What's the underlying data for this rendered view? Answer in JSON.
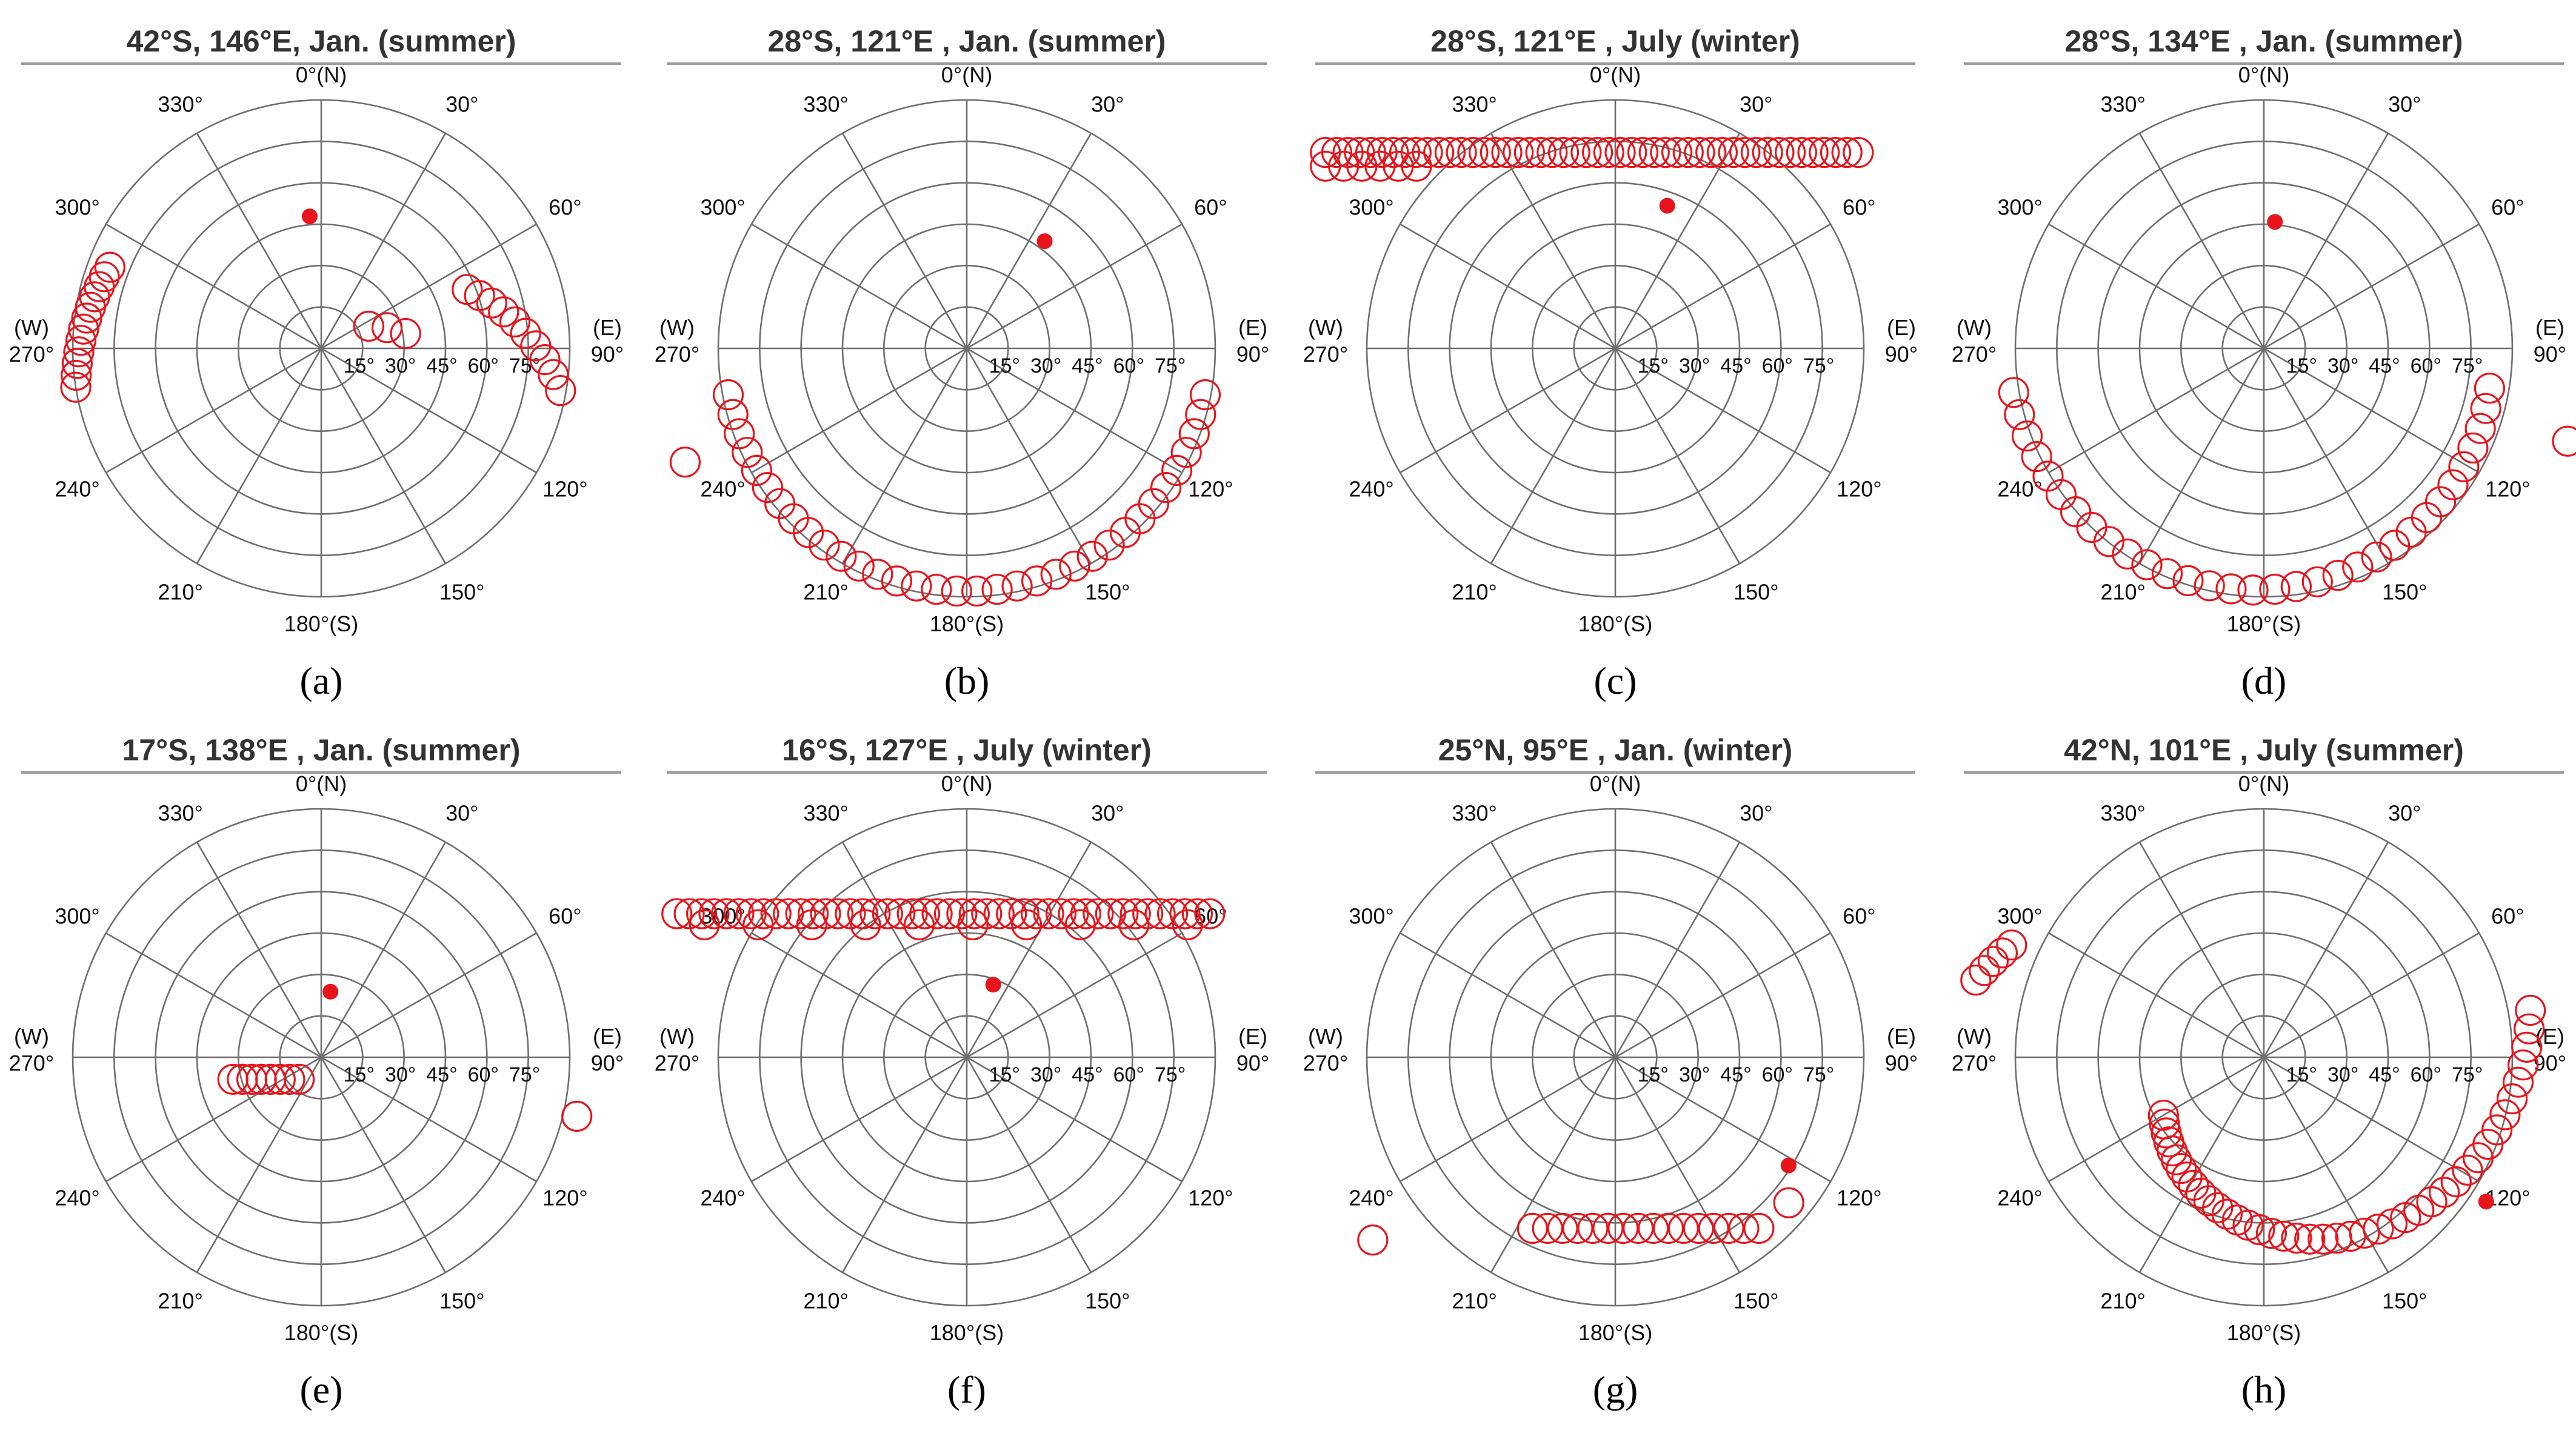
{
  "figure": {
    "panels": [
      "a",
      "b",
      "c",
      "d",
      "e",
      "f",
      "g",
      "h"
    ]
  },
  "colors": {
    "marker": "#e8141b",
    "grid": "#6e6e6e",
    "title_rule": "#999999",
    "text": "#111111"
  },
  "chart_data": [
    {
      "id": "a",
      "type": "polar-scatter",
      "title": "42°S, 146°E, Jan. (summer)",
      "caption": "(a)",
      "azimuth_labels": {
        "0": "0°(N)",
        "30": "30°",
        "60": "60°",
        "90": "(E) 90°",
        "120": "120°",
        "150": "150°",
        "180": "180°(S)",
        "210": "210°",
        "240": "240°",
        "270": "(W) 270°",
        "300": "300°",
        "330": "330°"
      },
      "zenith_rings": [
        15,
        30,
        45,
        60,
        75,
        90
      ],
      "radial_tick_labels": [
        "15°",
        "30°",
        "45°",
        "60°",
        "75°"
      ],
      "sun_marker": {
        "az": 355,
        "zen": 48
      },
      "series": [
        {
          "name": "west-arc",
          "az_from": 261,
          "az_to": 291,
          "zen_from": 90,
          "zen_to": 82,
          "count": 12
        },
        {
          "name": "center-cluster",
          "az_from": 65,
          "az_to": 80,
          "zen_from": 19,
          "zen_to": 31,
          "count": 3
        },
        {
          "name": "east-arc",
          "az_from": 68,
          "az_to": 100,
          "zen_from": 57,
          "zen_to": 88,
          "count": 10
        }
      ]
    },
    {
      "id": "b",
      "type": "polar-scatter",
      "title": "28°S, 121°E , Jan. (summer)",
      "caption": "(b)",
      "azimuth_labels": {
        "0": "0°(N)",
        "30": "30°",
        "60": "60°",
        "90": "(E) 90°",
        "120": "120°",
        "150": "150°",
        "180": "180°(S)",
        "210": "210°",
        "240": "240°",
        "270": "(W) 270°",
        "300": "300°",
        "330": "330°"
      },
      "zenith_rings": [
        15,
        30,
        45,
        60,
        75,
        90
      ],
      "radial_tick_labels": [
        "15°",
        "30°",
        "45°",
        "60°",
        "75°"
      ],
      "sun_marker": {
        "az": 36,
        "zen": 48
      },
      "series": [
        {
          "name": "main-arc",
          "az_from": 259,
          "az_to": 101,
          "zen_from": 88,
          "zen_to": 88,
          "count": 34
        },
        {
          "name": "outlier",
          "az_from": 248,
          "az_to": 248,
          "zen_from": 110,
          "zen_to": 110,
          "count": 1
        }
      ]
    },
    {
      "id": "c",
      "type": "polar-scatter",
      "title": "28°S, 121°E , July (winter)",
      "caption": "(c)",
      "azimuth_labels": {
        "0": "0°(N)",
        "30": "30°",
        "60": "60°",
        "90": "(E) 90°",
        "120": "120°",
        "150": "150°",
        "180": "180°(S)",
        "210": "210°",
        "240": "240°",
        "270": "(W) 270°",
        "300": "300°",
        "330": "330°"
      },
      "zenith_rings": [
        15,
        30,
        45,
        60,
        75,
        90
      ],
      "radial_tick_labels": [
        "15°",
        "30°",
        "45°",
        "60°",
        "75°"
      ],
      "sun_marker": {
        "az": 20,
        "zen": 55
      },
      "series": [
        {
          "name": "band",
          "type": "horizontal-band",
          "x_from": -105,
          "x_to": 88,
          "y": 71,
          "count": 48
        },
        {
          "name": "band-west",
          "type": "horizontal-band",
          "x_from": -105,
          "x_to": -72,
          "y": 66,
          "count": 6
        }
      ]
    },
    {
      "id": "d",
      "type": "polar-scatter",
      "title": "28°S, 134°E , Jan. (summer)",
      "caption": "(d)",
      "azimuth_labels": {
        "0": "0°(N)",
        "30": "30°",
        "60": "60°",
        "90": "(E) 90°",
        "120": "120°",
        "150": "150°",
        "180": "180°(S)",
        "210": "210°",
        "240": "240°",
        "270": "(W) 270°",
        "300": "300°",
        "330": "330°"
      },
      "zenith_rings": [
        15,
        30,
        45,
        60,
        75,
        90
      ],
      "radial_tick_labels": [
        "15°",
        "30°",
        "45°",
        "60°",
        "75°"
      ],
      "sun_marker": {
        "az": 5,
        "zen": 46
      },
      "series": [
        {
          "name": "main-arc",
          "az_from": 260,
          "az_to": 100,
          "zen_from": 92,
          "zen_to": 83,
          "count": 32
        },
        {
          "name": "outlier",
          "az_from": 107,
          "az_to": 107,
          "zen_from": 115,
          "zen_to": 115,
          "count": 1
        }
      ]
    },
    {
      "id": "e",
      "type": "polar-scatter",
      "title": "17°S, 138°E , Jan. (summer)",
      "caption": "(e)",
      "azimuth_labels": {
        "0": "0°(N)",
        "30": "30°",
        "60": "60°",
        "90": "(E) 90°",
        "120": "120°",
        "150": "150°",
        "180": "180°(S)",
        "210": "210°",
        "240": "240°",
        "270": "(W) 270°",
        "300": "300°",
        "330": "330°"
      },
      "zenith_rings": [
        15,
        30,
        45,
        60,
        75,
        90
      ],
      "radial_tick_labels": [
        "15°",
        "30°",
        "45°",
        "60°",
        "75°"
      ],
      "sun_marker": {
        "az": 8,
        "zen": 24
      },
      "series": [
        {
          "name": "cluster",
          "type": "horizontal-band",
          "x_from": -32,
          "x_to": -8,
          "y": -8,
          "count": 8
        },
        {
          "name": "outlier",
          "az_from": 103,
          "az_to": 103,
          "zen_from": 95,
          "zen_to": 95,
          "count": 1
        }
      ]
    },
    {
      "id": "f",
      "type": "polar-scatter",
      "title": "16°S, 127°E , July (winter)",
      "caption": "(f)",
      "azimuth_labels": {
        "0": "0°(N)",
        "30": "30°",
        "60": "60°",
        "90": "(E) 90°",
        "120": "120°",
        "150": "150°",
        "180": "180°(S)",
        "210": "210°",
        "240": "240°",
        "270": "(W) 270°",
        "300": "300°",
        "330": "330°"
      },
      "zenith_rings": [
        15,
        30,
        45,
        60,
        75,
        90
      ],
      "radial_tick_labels": [
        "15°",
        "30°",
        "45°",
        "60°",
        "75°"
      ],
      "sun_marker": {
        "az": 20,
        "zen": 28
      },
      "series": [
        {
          "name": "band",
          "type": "horizontal-band",
          "x_from": -105,
          "x_to": 88,
          "y": 52,
          "count": 44
        },
        {
          "name": "band-lower",
          "type": "horizontal-band",
          "x_from": -95,
          "x_to": 80,
          "y": 48,
          "count": 10
        }
      ]
    },
    {
      "id": "g",
      "type": "polar-scatter",
      "title": "25°N, 95°E , Jan. (winter)",
      "caption": "(g)",
      "azimuth_labels": {
        "0": "0°(N)",
        "30": "30°",
        "60": "60°",
        "90": "(E) 90°",
        "120": "120°",
        "150": "150°",
        "180": "180°(S)",
        "210": "210°",
        "240": "240°",
        "270": "(W) 270°",
        "300": "300°",
        "330": "330°"
      },
      "zenith_rings": [
        15,
        30,
        45,
        60,
        75,
        90
      ],
      "radial_tick_labels": [
        "15°",
        "30°",
        "45°",
        "60°",
        "75°"
      ],
      "sun_marker": {
        "az": 122,
        "zen": 74
      },
      "series": [
        {
          "name": "south-cluster",
          "type": "horizontal-band",
          "x_from": -30,
          "x_to": 52,
          "y": -62,
          "count": 16
        },
        {
          "name": "outlier-west",
          "az_from": 233,
          "az_to": 233,
          "zen_from": 110,
          "zen_to": 110,
          "count": 1
        },
        {
          "name": "outlier-east",
          "az_from": 130,
          "az_to": 130,
          "zen_from": 82,
          "zen_to": 82,
          "count": 1
        }
      ]
    },
    {
      "id": "h",
      "type": "polar-scatter",
      "title": "42°N, 101°E , July (summer)",
      "caption": "(h)",
      "azimuth_labels": {
        "0": "0°(N)",
        "30": "30°",
        "60": "60°",
        "90": "(E) 90°",
        "120": "120°",
        "150": "150°",
        "180": "180°(S)",
        "210": "210°",
        "240": "240°",
        "270": "(W) 270°",
        "300": "300°",
        "330": "330°"
      },
      "zenith_rings": [
        15,
        30,
        45,
        60,
        75,
        90
      ],
      "radial_tick_labels": [
        "15°",
        "30°",
        "45°",
        "60°",
        "75°"
      ],
      "sun_marker": {
        "az": 123,
        "zen": 96
      },
      "series": [
        {
          "name": "main-arc",
          "az_from": 240,
          "az_to": 80,
          "zen_from": 42,
          "zen_to": 98,
          "count": 42
        },
        {
          "name": "west-outliers",
          "az_from": 285,
          "az_to": 294,
          "zen_from": 108,
          "zen_to": 100,
          "count": 5
        }
      ]
    }
  ]
}
